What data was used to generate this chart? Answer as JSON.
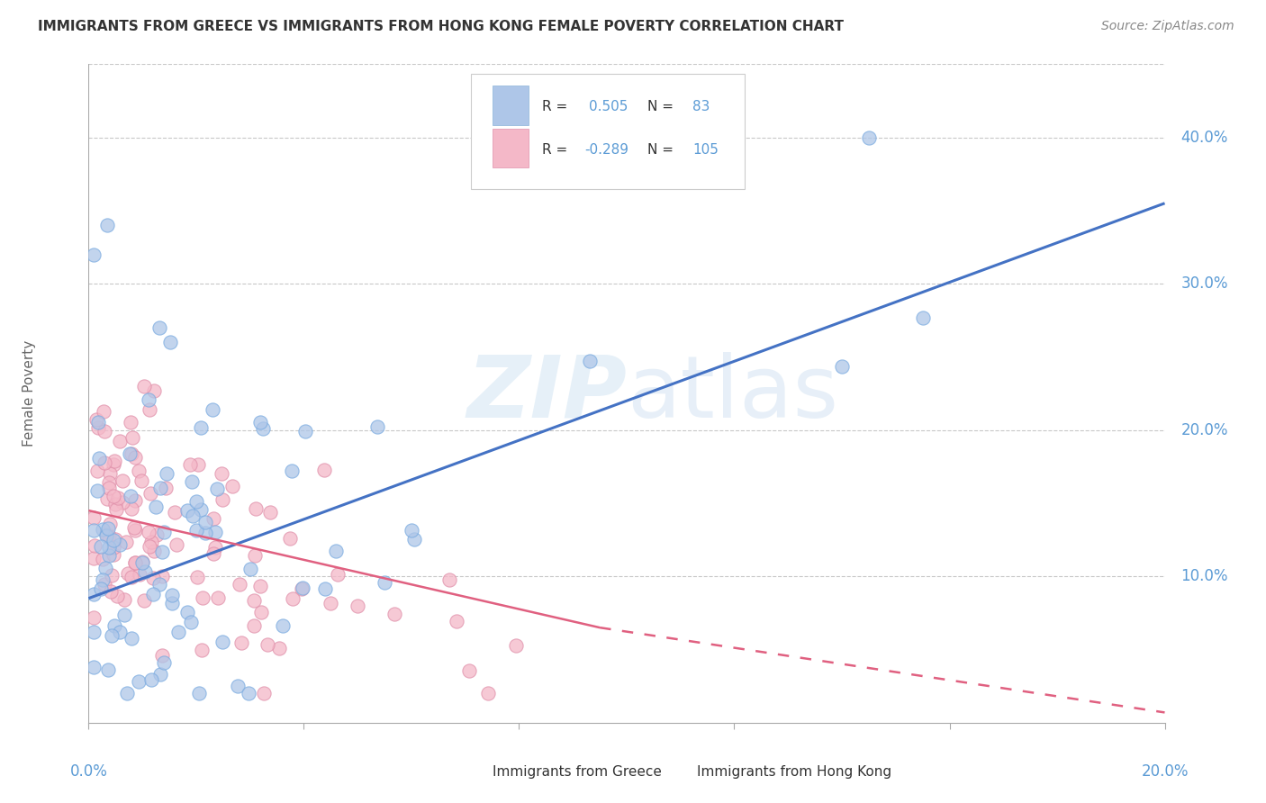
{
  "title": "IMMIGRANTS FROM GREECE VS IMMIGRANTS FROM HONG KONG FEMALE POVERTY CORRELATION CHART",
  "source": "Source: ZipAtlas.com",
  "ylabel": "Female Poverty",
  "r_greece": 0.505,
  "n_greece": 83,
  "r_hongkong": -0.289,
  "n_hongkong": 105,
  "legend_label_greece": "Immigrants from Greece",
  "legend_label_hongkong": "Immigrants from Hong Kong",
  "color_greece": "#aec6e8",
  "color_hongkong": "#f4b8c8",
  "color_line_greece": "#4472c4",
  "color_line_hongkong": "#e06080",
  "color_axis_label": "#5b9bd5",
  "xmin": 0.0,
  "xmax": 0.2,
  "ymin": 0.0,
  "ymax": 0.45,
  "greece_line_x0": 0.0,
  "greece_line_y0": 0.085,
  "greece_line_x1": 0.2,
  "greece_line_y1": 0.355,
  "hk_line_x0": 0.0,
  "hk_line_y0": 0.145,
  "hk_line_x1": 0.095,
  "hk_line_y1": 0.065,
  "hk_line_dash_x1": 0.2,
  "hk_line_dash_y1": 0.007,
  "ytick_values": [
    0.1,
    0.2,
    0.3,
    0.4
  ],
  "ytick_labels": [
    "10.0%",
    "20.0%",
    "30.0%",
    "40.0%"
  ],
  "xtick_left_label": "0.0%",
  "xtick_right_label": "20.0%"
}
